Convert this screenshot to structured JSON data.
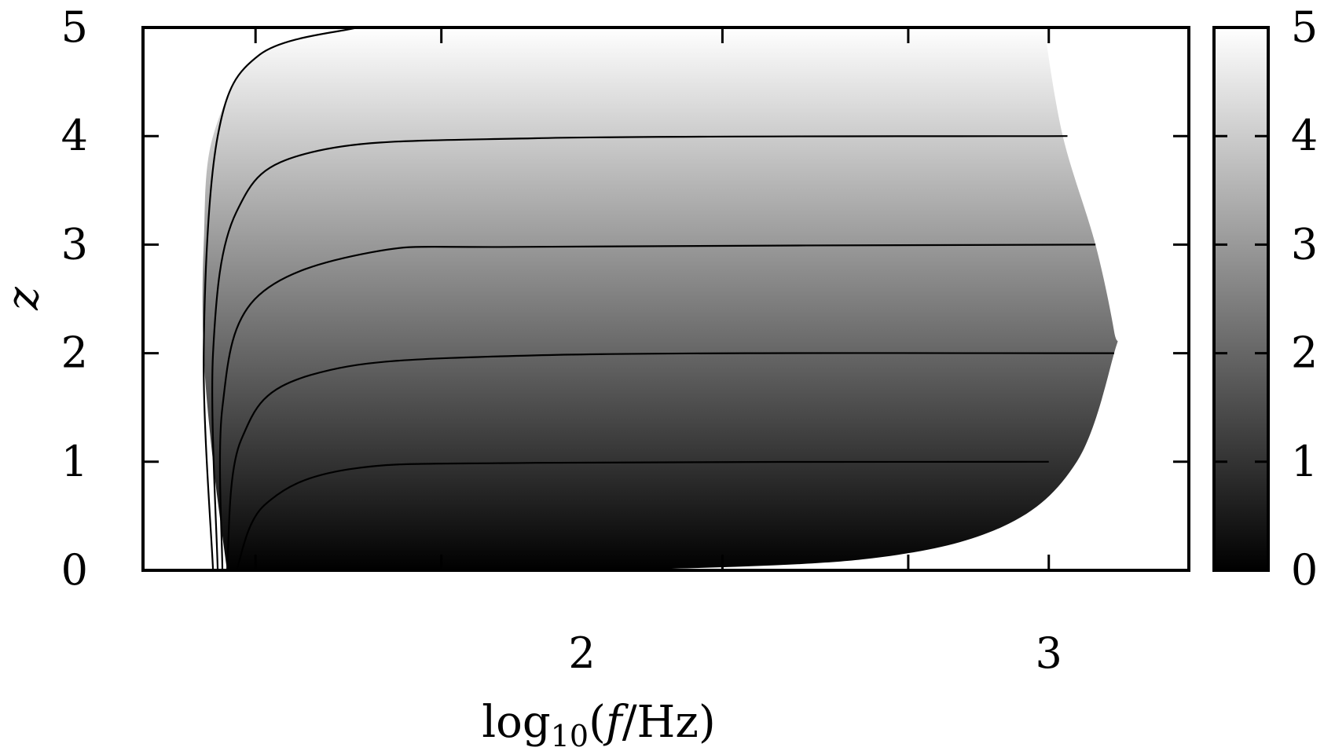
{
  "chart_data": {
    "type": "heatmap",
    "title": "",
    "xlabel": "log10(f/Hz)",
    "xlabel_parts": {
      "prefix": "log",
      "subscript": "10",
      "open": "(",
      "var": "f",
      "unit": "/Hz)"
    },
    "ylabel": "z",
    "x_ticks": [
      {
        "value": 2,
        "label": "2"
      },
      {
        "value": 3,
        "label": "3"
      }
    ],
    "y_ticks": [
      {
        "value": 0,
        "label": "0"
      },
      {
        "value": 1,
        "label": "1"
      },
      {
        "value": 2,
        "label": "2"
      },
      {
        "value": 3,
        "label": "3"
      },
      {
        "value": 4,
        "label": "4"
      },
      {
        "value": 5,
        "label": "5"
      }
    ],
    "xlim": [
      1.06,
      3.3
    ],
    "ylim": [
      0,
      5
    ],
    "colorbar": {
      "range": [
        0,
        5
      ],
      "colormap": [
        "#000000",
        "#ffffff"
      ],
      "ticks": [
        {
          "value": 0,
          "label": "0"
        },
        {
          "value": 1,
          "label": "1"
        },
        {
          "value": 2,
          "label": "2"
        },
        {
          "value": 3,
          "label": "3"
        },
        {
          "value": 4,
          "label": "4"
        },
        {
          "value": 5,
          "label": "5"
        }
      ]
    },
    "color_value": "z",
    "region": {
      "left_boundary": [
        [
          1.24,
          0
        ],
        [
          1.21,
          1
        ],
        [
          1.19,
          2
        ],
        [
          1.19,
          3
        ],
        [
          1.21,
          4
        ],
        [
          1.31,
          4.75
        ],
        [
          1.52,
          5
        ]
      ],
      "right_boundary": [
        [
          2.08,
          0
        ],
        [
          2.6,
          0.1
        ],
        [
          2.9,
          0.4
        ],
        [
          3.06,
          1.0
        ],
        [
          3.14,
          2.0
        ],
        [
          3.14,
          2.2
        ],
        [
          3.1,
          3.0
        ],
        [
          3.03,
          4.0
        ],
        [
          2.99,
          5.0
        ]
      ]
    },
    "contours": [
      {
        "level": 1,
        "points": [
          [
            1.26,
            0
          ],
          [
            1.32,
            0.6
          ],
          [
            1.5,
            0.93
          ],
          [
            1.9,
            0.99
          ],
          [
            3.0,
            1.0
          ]
        ]
      },
      {
        "level": 2,
        "points": [
          [
            1.24,
            0
          ],
          [
            1.27,
            1.2
          ],
          [
            1.42,
            1.8
          ],
          [
            1.9,
            1.98
          ],
          [
            3.14,
            2.0
          ]
        ]
      },
      {
        "level": 3,
        "points": [
          [
            1.23,
            0
          ],
          [
            1.23,
            1.5
          ],
          [
            1.3,
            2.5
          ],
          [
            1.55,
            2.93
          ],
          [
            1.9,
            2.98
          ],
          [
            3.1,
            3.0
          ]
        ]
      },
      {
        "level": 4,
        "points": [
          [
            1.22,
            0
          ],
          [
            1.21,
            2.0
          ],
          [
            1.26,
            3.3
          ],
          [
            1.42,
            3.85
          ],
          [
            1.9,
            3.98
          ],
          [
            3.04,
            4.0
          ]
        ]
      },
      {
        "level": 5,
        "points": [
          [
            1.21,
            0
          ],
          [
            1.19,
            2.0
          ],
          [
            1.22,
            4.0
          ],
          [
            1.31,
            4.75
          ],
          [
            1.52,
            5.0
          ]
        ]
      }
    ],
    "grid": false,
    "legend": "none"
  }
}
